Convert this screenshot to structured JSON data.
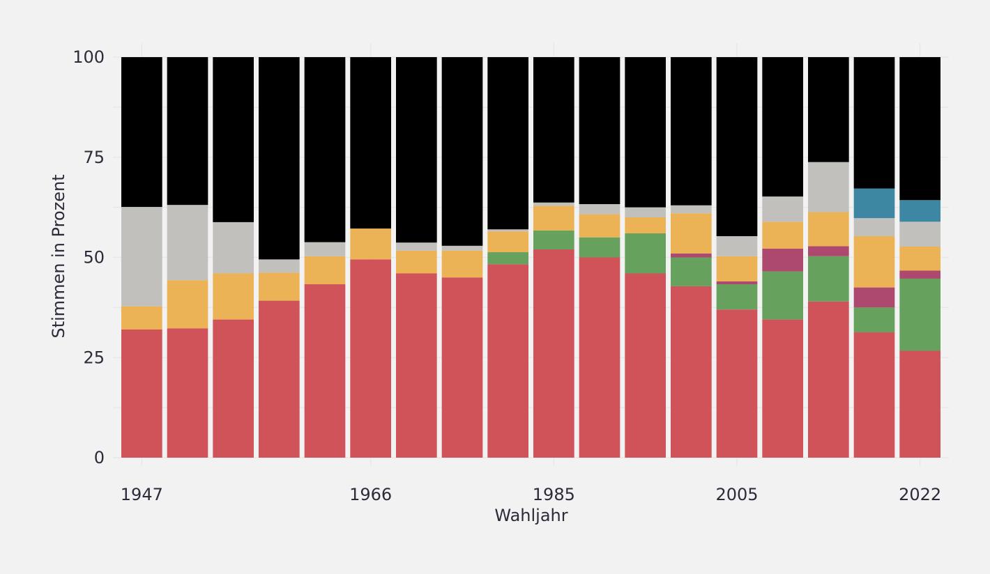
{
  "chart_data": {
    "type": "bar",
    "stacked": true,
    "title": "",
    "xlabel": "Wahljahr",
    "ylabel": "Stimmen in Prozent",
    "ylim": [
      0,
      100
    ],
    "yticks": [
      0,
      25,
      50,
      75,
      100
    ],
    "x_tick_labels": [
      "1947",
      "1966",
      "1985",
      "2005",
      "2022"
    ],
    "x_tick_label_bars": [
      0,
      5,
      9,
      13,
      17
    ],
    "grid": true,
    "legend": "none",
    "x": [
      "1947",
      "",
      "",
      "",
      "",
      "1966",
      "",
      "",
      "",
      "1985",
      "",
      "",
      "",
      "2005",
      "",
      "",
      "",
      "2022"
    ],
    "series": [
      {
        "color": "#d0535a",
        "values": [
          32.0,
          32.3,
          34.5,
          39.2,
          43.3,
          49.5,
          46.0,
          45.0,
          48.3,
          52.0,
          50.0,
          46.0,
          42.8,
          37.0,
          34.5,
          39.0,
          31.3,
          26.7
        ]
      },
      {
        "color": "#66a25e",
        "values": [
          0,
          0,
          0,
          0,
          0,
          0,
          0,
          0,
          3.0,
          4.7,
          5.0,
          10.0,
          7.2,
          6.3,
          12.0,
          11.3,
          6.2,
          18.0
        ]
      },
      {
        "color": "#ad496e",
        "values": [
          0,
          0,
          0,
          0,
          0,
          0,
          0,
          0,
          0,
          0,
          0,
          0,
          1.0,
          0.7,
          5.7,
          2.5,
          5.0,
          2.0
        ]
      },
      {
        "color": "#ebb355",
        "values": [
          5.8,
          12.0,
          11.5,
          7.0,
          7.0,
          7.7,
          5.7,
          6.7,
          5.2,
          6.2,
          5.8,
          4.0,
          10.0,
          6.3,
          6.7,
          8.5,
          12.8,
          6.0
        ]
      },
      {
        "color": "#c1c0bd",
        "values": [
          24.8,
          18.8,
          12.8,
          3.3,
          3.5,
          0,
          2.0,
          1.2,
          0.5,
          0.8,
          2.5,
          2.5,
          2.0,
          5.0,
          6.3,
          12.5,
          4.5,
          6.2
        ]
      },
      {
        "color": "#3e87a3",
        "values": [
          0,
          0,
          0,
          0,
          0,
          0,
          0,
          0,
          0,
          0,
          0,
          0,
          0,
          0,
          0,
          0,
          7.4,
          5.4
        ]
      },
      {
        "color": "#000000",
        "values": [
          37.4,
          36.9,
          41.2,
          50.5,
          46.2,
          42.8,
          46.3,
          47.1,
          43.0,
          36.3,
          36.7,
          37.5,
          37.0,
          44.7,
          34.8,
          26.2,
          32.8,
          35.7
        ]
      }
    ]
  }
}
